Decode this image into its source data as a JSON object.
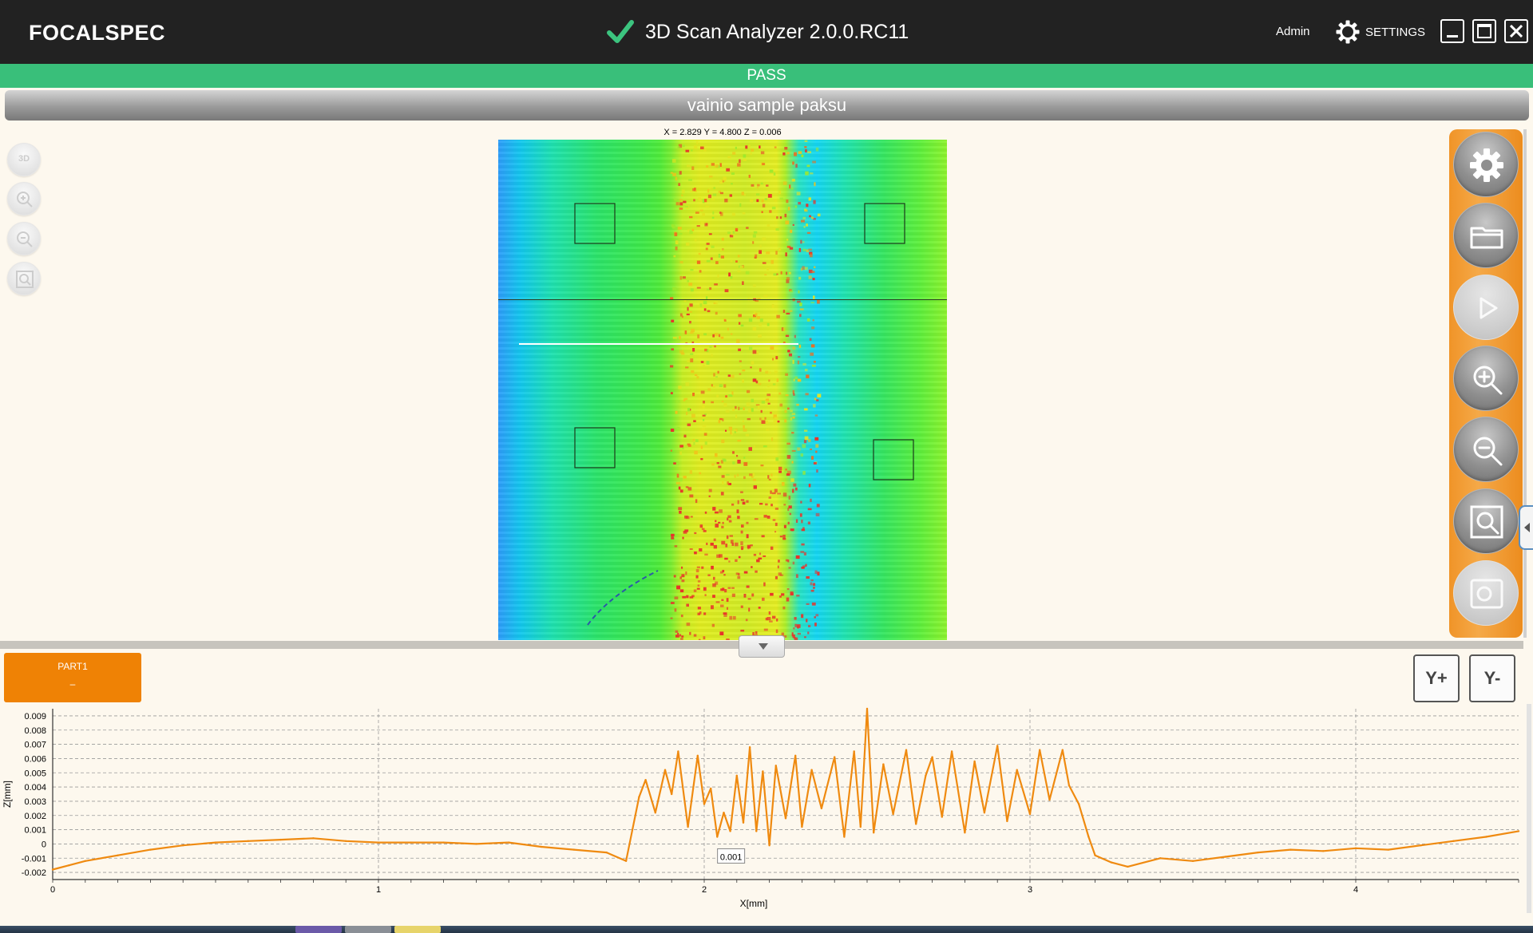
{
  "titlebar": {
    "brand": "FOCALSPEC",
    "app_title": "3D Scan Analyzer 2.0.0.RC11",
    "user": "Admin",
    "settings_label": "SETTINGS"
  },
  "status": {
    "label": "PASS",
    "color": "#39bf7a"
  },
  "sample": {
    "name": "vainio sample paksu"
  },
  "viewer": {
    "coords": "X = 2.829 Y = 4.800 Z = 0.006",
    "left_tools": [
      "3d-view-icon",
      "zoom-in-icon",
      "zoom-out-icon",
      "zoom-fit-icon"
    ],
    "left_tool_3d_label": "3D",
    "right_tools": [
      "gear-icon",
      "folder-icon",
      "play-icon",
      "zoom-in-icon",
      "zoom-out-icon",
      "zoom-fit-icon",
      "screenshot-icon"
    ]
  },
  "part_tab": {
    "name": "PART1",
    "value": "–",
    "color": "#ef8205"
  },
  "y_controls": {
    "plus": "Y+",
    "minus": "Y-"
  },
  "chart_data": {
    "type": "line",
    "xlabel": "X[mm]",
    "ylabel": "Z[mm]",
    "xlim": [
      0,
      4.5
    ],
    "ylim": [
      -0.0025,
      0.0095
    ],
    "x_ticks": [
      "0",
      "1",
      "2",
      "3",
      "4"
    ],
    "y_ticks": [
      "0.009",
      "0.008",
      "0.007",
      "0.006",
      "0.005",
      "0.004",
      "0.003",
      "0.002",
      "0.001",
      "0",
      "-0.001",
      "-0.002"
    ],
    "grid": true,
    "series_color": "#ef8a10",
    "series": [
      {
        "x": [
          0,
          0.05,
          0.1,
          0.2,
          0.3,
          0.4,
          0.5,
          0.6,
          0.7,
          0.8,
          0.9,
          1.0,
          1.1,
          1.2,
          1.3,
          1.4,
          1.5,
          1.6,
          1.7,
          1.76,
          1.8,
          1.82,
          1.85,
          1.88,
          1.9,
          1.92,
          1.95,
          1.98,
          2.0,
          2.02,
          2.04,
          2.06,
          2.08,
          2.1,
          2.12,
          2.14,
          2.16,
          2.18,
          2.2,
          2.22,
          2.25,
          2.28,
          2.3,
          2.33,
          2.36,
          2.4,
          2.43,
          2.46,
          2.48,
          2.5,
          2.52,
          2.55,
          2.58,
          2.62,
          2.65,
          2.68,
          2.7,
          2.73,
          2.76,
          2.8,
          2.83,
          2.86,
          2.9,
          2.93,
          2.96,
          3.0,
          3.03,
          3.06,
          3.1,
          3.12,
          3.15,
          3.18,
          3.2,
          3.25,
          3.3,
          3.4,
          3.5,
          3.6,
          3.7,
          3.8,
          3.9,
          4.0,
          4.1,
          4.2,
          4.3,
          4.4,
          4.5
        ],
        "values": [
          -0.0018,
          -0.0015,
          -0.0012,
          -0.0008,
          -0.0004,
          -0.0001,
          0.0001,
          0.0002,
          0.0003,
          0.0004,
          0.0002,
          0.0001,
          0.0001,
          0.0001,
          0.0,
          0.0001,
          -0.0002,
          -0.0004,
          -0.0006,
          -0.0012,
          0.0033,
          0.0045,
          0.0022,
          0.0052,
          0.0035,
          0.0065,
          0.0012,
          0.0062,
          0.0028,
          0.0039,
          0.0005,
          0.0022,
          0.0009,
          0.0048,
          0.0015,
          0.0068,
          0.0009,
          0.0051,
          -0.0001,
          0.0055,
          0.0018,
          0.0062,
          0.0012,
          0.0052,
          0.0025,
          0.0061,
          0.0005,
          0.0065,
          0.0012,
          0.0095,
          0.0008,
          0.0056,
          0.0021,
          0.0066,
          0.0014,
          0.0048,
          0.0061,
          0.0019,
          0.0065,
          0.0008,
          0.0058,
          0.0022,
          0.0069,
          0.0016,
          0.0052,
          0.0021,
          0.0066,
          0.0031,
          0.0066,
          0.0041,
          0.0028,
          0.0005,
          -0.0008,
          -0.0013,
          -0.0016,
          -0.001,
          -0.0012,
          -0.0009,
          -0.0006,
          -0.0004,
          -0.0005,
          -0.0003,
          -0.0004,
          -0.0001,
          0.0002,
          0.0005,
          0.0009
        ]
      }
    ],
    "annotation": "0.001"
  }
}
